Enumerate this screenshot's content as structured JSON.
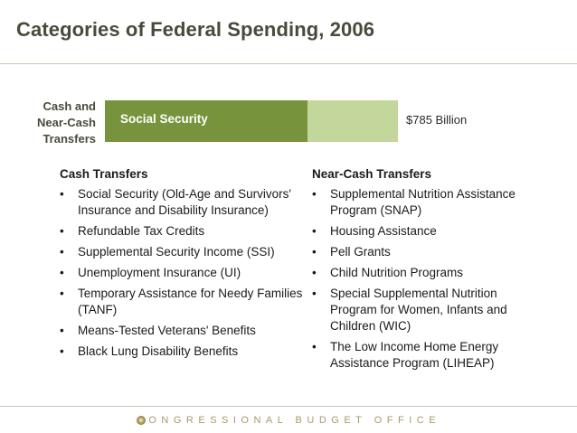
{
  "title": "Categories of Federal Spending, 2006",
  "bar": {
    "label_lines": [
      "Cash and",
      "Near-Cash",
      "Transfers"
    ],
    "segment_label": "Social Security",
    "total": "$785 Billion"
  },
  "cash": {
    "heading": "Cash Transfers",
    "items": [
      "Social Security (Old-Age and Survivors' Insurance and Disability Insurance)",
      "Refundable Tax Credits",
      "Supplemental Security Income (SSI)",
      "Unemployment Insurance (UI)",
      "Temporary Assistance for Needy Families (TANF)",
      "Means-Tested Veterans' Benefits",
      "Black Lung Disability Benefits"
    ]
  },
  "near_cash": {
    "heading": "Near-Cash Transfers",
    "items": [
      "Supplemental Nutrition Assistance Program (SNAP)",
      "Housing Assistance",
      "Pell Grants",
      "Child Nutrition Programs",
      "Special Supplemental Nutrition Program for Women, Infants and Children (WIC)",
      "The Low Income Home Energy Assistance Program (LIHEAP)"
    ]
  },
  "footer": "CONGRESSIONAL BUDGET OFFICE",
  "colors": {
    "social_security": "#77933c",
    "other_transfers": "#c3d69b",
    "footer": "#a89a6a"
  }
}
